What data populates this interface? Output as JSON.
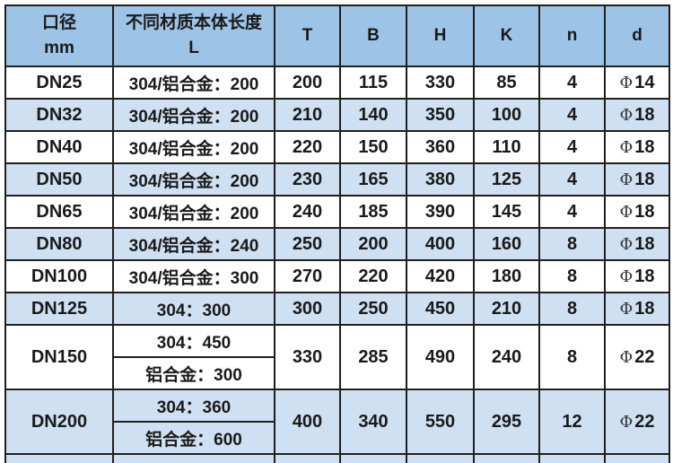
{
  "header": {
    "diameter": {
      "line1": "口径",
      "line2": "mm"
    },
    "length": {
      "line1": "不同材质本体长度",
      "line2": "L"
    },
    "columns": [
      "T",
      "B",
      "H",
      "K",
      "n",
      "d"
    ]
  },
  "chart_data": {
    "type": "table",
    "columns": [
      "口径 mm",
      "不同材质本体长度 L",
      "T",
      "B",
      "H",
      "K",
      "n",
      "d"
    ],
    "rows": [
      {
        "dn": "DN25",
        "lengths": [
          "304/铝合金：200"
        ],
        "T": "200",
        "B": "115",
        "H": "330",
        "K": "85",
        "n": "4",
        "d_sym": "Φ",
        "d_val": "14",
        "striped": false
      },
      {
        "dn": "DN32",
        "lengths": [
          "304/铝合金：200"
        ],
        "T": "210",
        "B": "140",
        "H": "350",
        "K": "100",
        "n": "4",
        "d_sym": "Φ",
        "d_val": "18",
        "striped": true
      },
      {
        "dn": "DN40",
        "lengths": [
          "304/铝合金：200"
        ],
        "T": "220",
        "B": "150",
        "H": "360",
        "K": "110",
        "n": "4",
        "d_sym": "Φ",
        "d_val": "18",
        "striped": false
      },
      {
        "dn": "DN50",
        "lengths": [
          "304/铝合金：200"
        ],
        "T": "230",
        "B": "165",
        "H": "380",
        "K": "125",
        "n": "4",
        "d_sym": "Φ",
        "d_val": "18",
        "striped": true
      },
      {
        "dn": "DN65",
        "lengths": [
          "304/铝合金：200"
        ],
        "T": "240",
        "B": "185",
        "H": "390",
        "K": "145",
        "n": "4",
        "d_sym": "Φ",
        "d_val": "18",
        "striped": false
      },
      {
        "dn": "DN80",
        "lengths": [
          "304/铝合金：240"
        ],
        "T": "250",
        "B": "200",
        "H": "400",
        "K": "160",
        "n": "8",
        "d_sym": "Φ",
        "d_val": "18",
        "striped": true
      },
      {
        "dn": "DN100",
        "lengths": [
          "304/铝合金：300"
        ],
        "T": "270",
        "B": "220",
        "H": "420",
        "K": "180",
        "n": "8",
        "d_sym": "Φ",
        "d_val": "18",
        "striped": false
      },
      {
        "dn": "DN125",
        "lengths": [
          "304：300"
        ],
        "T": "300",
        "B": "250",
        "H": "450",
        "K": "210",
        "n": "8",
        "d_sym": "Φ",
        "d_val": "18",
        "striped": true
      },
      {
        "dn": "DN150",
        "lengths": [
          "304：450",
          "铝合金：300"
        ],
        "T": "330",
        "B": "285",
        "H": "490",
        "K": "240",
        "n": "8",
        "d_sym": "Φ",
        "d_val": "22",
        "striped": false
      },
      {
        "dn": "DN200",
        "lengths": [
          "304：360",
          "铝合金：600"
        ],
        "T": "400",
        "B": "340",
        "H": "550",
        "K": "295",
        "n": "12",
        "d_sym": "Φ",
        "d_val": "22",
        "striped": true
      }
    ]
  },
  "colors": {
    "header_bg": "#9DC3E6",
    "stripe_bg": "#CFE0F2",
    "row_bg": "#FFFFFF",
    "border": "#1F1F1F",
    "text": "#1A1A1A"
  }
}
